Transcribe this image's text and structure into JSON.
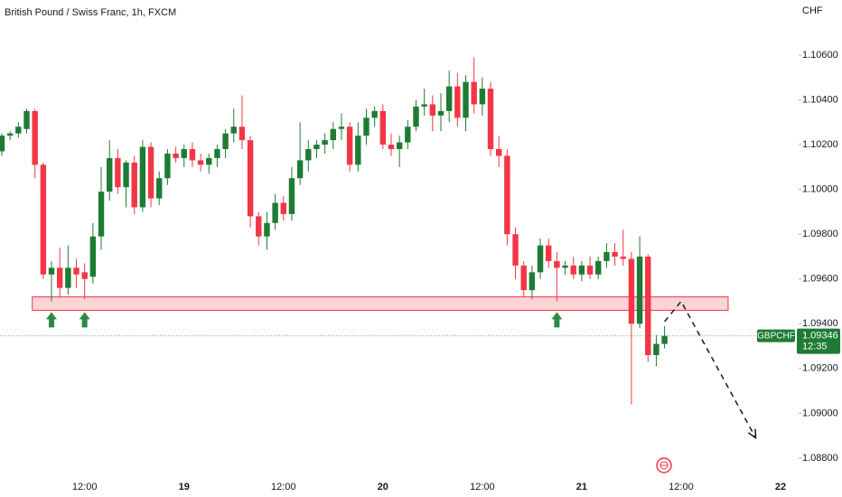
{
  "chart_data": {
    "type": "candlestick",
    "title": "British Pound / Swiss Franc, 1h, FXCM",
    "y_unit": "CHF",
    "symbol": "GBPCHF",
    "countdown": "12:35",
    "last_price": 1.09346,
    "up_color": "#1e7b34",
    "down_color": "#f23645",
    "categories": [
      null,
      null,
      null,
      null,
      null,
      null,
      null,
      null,
      null,
      null,
      "12:00",
      null,
      null,
      null,
      null,
      null,
      null,
      null,
      null,
      null,
      null,
      null,
      "19",
      null,
      null,
      null,
      null,
      null,
      null,
      null,
      null,
      null,
      null,
      null,
      "12:00",
      null,
      null,
      null,
      null,
      null,
      null,
      null,
      null,
      null,
      null,
      null,
      "20",
      null,
      null,
      null,
      null,
      null,
      null,
      null,
      null,
      null,
      null,
      null,
      "12:00",
      null,
      null,
      null,
      null,
      null,
      null,
      null,
      null,
      null,
      null,
      null,
      "21",
      null,
      null,
      null,
      null,
      null,
      null,
      null,
      null,
      null,
      null,
      null,
      "12:00",
      null,
      null,
      null,
      null,
      null,
      null,
      null,
      null,
      null,
      null,
      null,
      "22",
      null
    ],
    "open": [
      1.1017,
      1.1024,
      1.1025,
      1.1027,
      1.1035,
      1.1011,
      1.0962,
      1.0965,
      1.0956,
      1.0965,
      1.0963,
      1.0961,
      1.0979,
      1.0999,
      1.1014,
      1.1001,
      1.1012,
      1.0992,
      1.1019,
      1.0996,
      1.1005,
      1.1016,
      1.1014,
      1.1018,
      1.1013,
      1.1011,
      1.1014,
      1.1018,
      1.1025,
      1.1028,
      1.1022,
      1.0988,
      1.0979,
      1.0985,
      1.0994,
      1.0989,
      1.1005,
      1.1013,
      1.1018,
      1.102,
      1.1022,
      1.1027,
      1.1028,
      1.1011,
      1.1024,
      1.1032,
      1.1035,
      1.102,
      1.1018,
      1.1021,
      1.1028,
      1.1037,
      1.1038,
      1.1033,
      1.1035,
      1.1046,
      1.1032,
      1.1048,
      1.1038,
      1.1045,
      1.1018,
      1.1015,
      1.098,
      1.0966,
      1.0955,
      1.0963,
      1.0975,
      1.0968,
      1.0965,
      1.0966,
      1.0962,
      1.0966,
      1.0962,
      1.0968,
      1.0972,
      1.097,
      1.0969,
      1.094,
      1.097,
      1.0926,
      1.0931,
      null,
      null,
      null,
      null,
      null,
      null,
      null,
      null,
      null,
      null,
      null,
      null,
      null,
      null,
      null
    ],
    "high": [
      1.1025,
      1.1026,
      1.103,
      1.1036,
      1.1036,
      1.1012,
      1.0968,
      1.0974,
      1.0975,
      1.0969,
      1.0967,
      1.0985,
      1.101,
      1.1022,
      1.1018,
      1.1013,
      1.1015,
      1.1022,
      1.1021,
      1.1008,
      1.1018,
      1.1019,
      1.102,
      1.1021,
      1.1016,
      1.1016,
      1.102,
      1.1027,
      1.1036,
      1.1042,
      1.1024,
      1.099,
      1.099,
      1.0998,
      1.0997,
      1.101,
      1.103,
      1.1022,
      1.1022,
      1.1025,
      1.103,
      1.1034,
      1.103,
      1.103,
      1.1036,
      1.1037,
      1.1038,
      1.1025,
      1.1024,
      1.1031,
      1.104,
      1.1045,
      1.1042,
      1.1043,
      1.1053,
      1.1052,
      1.1051,
      1.1059,
      1.105,
      1.1048,
      1.1024,
      1.1018,
      1.0983,
      1.0968,
      1.0966,
      1.0978,
      1.0978,
      1.0972,
      1.0968,
      1.097,
      1.0968,
      1.097,
      1.097,
      1.0976,
      1.0976,
      1.0982,
      1.0972,
      1.0979,
      1.0971,
      1.0935,
      1.0939,
      null,
      null,
      null,
      null,
      null,
      null,
      null,
      null,
      null,
      null,
      null,
      null,
      null,
      null,
      null
    ],
    "low": [
      1.1015,
      1.1022,
      1.1023,
      1.1025,
      1.1005,
      1.096,
      1.095,
      1.0952,
      1.0953,
      1.0956,
      1.0951,
      1.0958,
      1.0973,
      1.0995,
      1.0998,
      1.0992,
      1.0989,
      1.099,
      1.0992,
      1.0993,
      1.1002,
      1.1012,
      1.101,
      1.101,
      1.1008,
      1.1007,
      1.101,
      1.1014,
      1.1021,
      1.1018,
      1.0983,
      1.0975,
      1.0973,
      1.0982,
      1.0986,
      1.0986,
      1.1002,
      1.1008,
      1.1014,
      1.1016,
      1.1018,
      1.1022,
      1.1008,
      1.1008,
      1.102,
      1.1028,
      1.1018,
      1.1015,
      1.101,
      1.1018,
      1.1026,
      1.1033,
      1.1026,
      1.1026,
      1.103,
      1.1028,
      1.1026,
      1.1034,
      1.1033,
      1.1015,
      1.101,
      1.0975,
      1.096,
      1.0952,
      1.0951,
      1.096,
      1.0965,
      1.095,
      1.0962,
      1.096,
      1.0959,
      1.096,
      1.096,
      1.0965,
      1.0966,
      1.0966,
      1.0904,
      1.0938,
      1.0923,
      1.0921,
      1.0929,
      null,
      null,
      null,
      null,
      null,
      null,
      null,
      null,
      null,
      null,
      null,
      null,
      null,
      null,
      null
    ],
    "close": [
      1.1024,
      1.1025,
      1.1028,
      1.1035,
      1.1011,
      1.0962,
      1.0965,
      1.0956,
      1.0965,
      1.0962,
      1.096,
      1.0979,
      1.0999,
      1.1014,
      1.1001,
      1.1012,
      1.0992,
      1.1019,
      1.0996,
      1.1005,
      1.1016,
      1.1014,
      1.1018,
      1.1013,
      1.1011,
      1.1014,
      1.1018,
      1.1025,
      1.1028,
      1.1022,
      1.0988,
      1.0979,
      1.0985,
      1.0994,
      1.0989,
      1.1005,
      1.1013,
      1.1018,
      1.102,
      1.1022,
      1.1027,
      1.1028,
      1.1011,
      1.1024,
      1.1032,
      1.1035,
      1.102,
      1.1018,
      1.1021,
      1.1028,
      1.1037,
      1.1038,
      1.1033,
      1.1035,
      1.1046,
      1.1032,
      1.1048,
      1.1038,
      1.1045,
      1.1018,
      1.1015,
      1.098,
      1.0966,
      1.0955,
      1.0963,
      1.0975,
      1.0968,
      1.0965,
      1.0966,
      1.0962,
      1.0966,
      1.0962,
      1.0968,
      1.0972,
      1.097,
      1.0969,
      1.094,
      1.097,
      1.0926,
      1.0931,
      1.09346,
      null,
      null,
      null,
      null,
      null,
      null,
      null,
      null,
      null,
      null,
      null,
      null,
      null,
      null,
      null
    ],
    "zone": {
      "low": 1.0946,
      "high": 1.0952,
      "from": 4,
      "to": 88,
      "color": "#f23645"
    },
    "signals": [
      6,
      10,
      67
    ],
    "projection": {
      "x": [
        80,
        82,
        91
      ],
      "y": [
        1.0941,
        1.095,
        1.0889
      ]
    },
    "ylim": [
      1.08715,
      1.10846
    ],
    "yticks": [
      {
        "value": 1.106,
        "label": "1.10600"
      },
      {
        "value": 1.104,
        "label": "1.10400"
      },
      {
        "value": 1.102,
        "label": "1.10200"
      },
      {
        "value": 1.1,
        "label": "1.10000"
      },
      {
        "value": 1.098,
        "label": "1.09800"
      },
      {
        "value": 1.096,
        "label": "1.09600"
      },
      {
        "value": 1.094,
        "label": "1.09400"
      },
      {
        "value": 1.092,
        "label": "1.09200"
      },
      {
        "value": 1.09,
        "label": "1.09000"
      },
      {
        "value": 1.088,
        "label": "1.08800"
      }
    ]
  }
}
